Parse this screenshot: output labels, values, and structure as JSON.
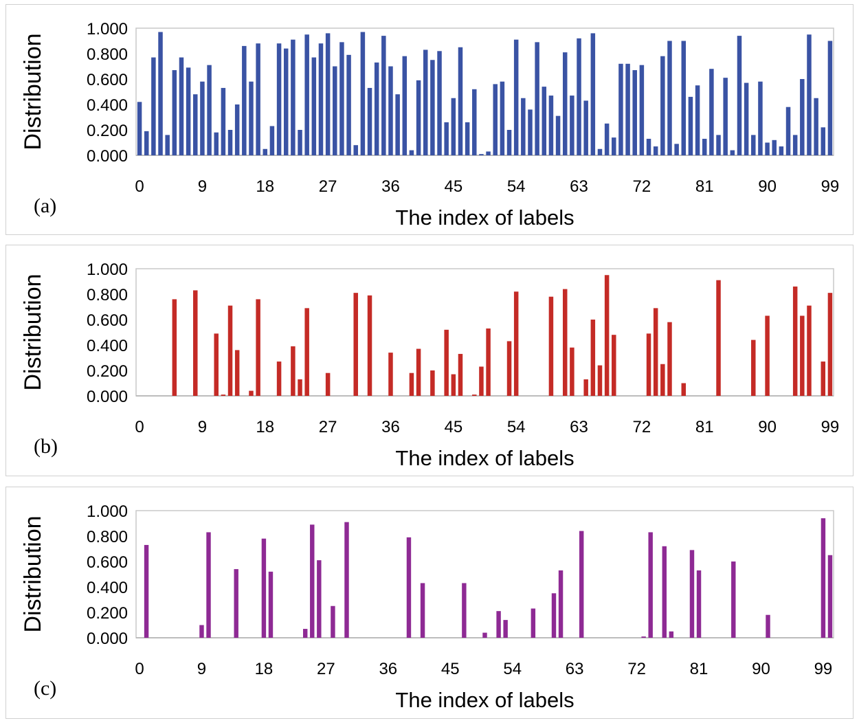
{
  "chart_data": [
    {
      "type": "bar",
      "panel_label": "(a)",
      "color": "#3a53a4",
      "ylabel": "Distribution",
      "xlabel": "The index of labels",
      "ylim": [
        0,
        1
      ],
      "yticks": [
        "0.000",
        "0.200",
        "0.400",
        "0.600",
        "0.800",
        "1.000"
      ],
      "xticks": [
        "0",
        "9",
        "18",
        "27",
        "36",
        "45",
        "54",
        "63",
        "72",
        "81",
        "90",
        "99"
      ],
      "values": [
        0.42,
        0.19,
        0.77,
        0.97,
        0.16,
        0.67,
        0.77,
        0.69,
        0.48,
        0.58,
        0.71,
        0.18,
        0.53,
        0.2,
        0.4,
        0.86,
        0.58,
        0.88,
        0.05,
        0.23,
        0.88,
        0.84,
        0.91,
        0.2,
        0.95,
        0.77,
        0.88,
        0.96,
        0.7,
        0.89,
        0.79,
        0.08,
        0.97,
        0.53,
        0.73,
        0.94,
        0.7,
        0.48,
        0.78,
        0.04,
        0.59,
        0.83,
        0.75,
        0.82,
        0.26,
        0.45,
        0.85,
        0.26,
        0.52,
        0.01,
        0.03,
        0.56,
        0.58,
        0.2,
        0.91,
        0.45,
        0.36,
        0.89,
        0.54,
        0.47,
        0.31,
        0.81,
        0.47,
        0.92,
        0.43,
        0.96,
        0.05,
        0.25,
        0.14,
        0.72,
        0.72,
        0.67,
        0.71,
        0.13,
        0.07,
        0.78,
        0.9,
        0.09,
        0.9,
        0.46,
        0.55,
        0.13,
        0.68,
        0.16,
        0.61,
        0.04,
        0.94,
        0.57,
        0.16,
        0.58,
        0.1,
        0.12,
        0.07,
        0.38,
        0.16,
        0.6,
        0.95,
        0.45,
        0.22,
        0.9
      ]
    },
    {
      "type": "bar",
      "panel_label": "(b)",
      "color": "#c42b26",
      "ylabel": "Distribution",
      "xlabel": "The index of labels",
      "ylim": [
        0,
        1
      ],
      "yticks": [
        "0.000",
        "0.200",
        "0.400",
        "0.600",
        "0.800",
        "1.000"
      ],
      "xticks": [
        "0",
        "9",
        "18",
        "27",
        "36",
        "45",
        "54",
        "63",
        "72",
        "81",
        "90",
        "99"
      ],
      "values": [
        0,
        0,
        0,
        0,
        0,
        0.76,
        0,
        0,
        0.83,
        0,
        0,
        0.49,
        0.01,
        0.71,
        0.36,
        0,
        0.04,
        0.76,
        0,
        0,
        0.27,
        0,
        0.39,
        0.13,
        0.69,
        0,
        0,
        0.18,
        0,
        0,
        0,
        0.81,
        0,
        0.79,
        0,
        0,
        0.34,
        0,
        0,
        0.18,
        0.37,
        0,
        0.2,
        0,
        0.52,
        0.17,
        0.33,
        0,
        0.01,
        0.23,
        0.53,
        0,
        0,
        0.43,
        0.82,
        0,
        0,
        0,
        0,
        0.78,
        0,
        0.84,
        0.38,
        0,
        0.13,
        0.6,
        0.24,
        0.95,
        0.48,
        0,
        0,
        0,
        0,
        0.49,
        0.69,
        0.25,
        0.58,
        0,
        0.1,
        0,
        0,
        0,
        0,
        0.91,
        0,
        0,
        0,
        0,
        0.44,
        0,
        0.63,
        0,
        0,
        0,
        0.86,
        0.63,
        0.71,
        0,
        0.27,
        0.81
      ]
    },
    {
      "type": "bar",
      "panel_label": "(c)",
      "color": "#8e2a94",
      "ylabel": "Distribution",
      "xlabel": "The index of labels",
      "ylim": [
        0,
        1
      ],
      "yticks": [
        "0.000",
        "0.200",
        "0.400",
        "0.600",
        "0.800",
        "1.000"
      ],
      "xticks": [
        "0",
        "9",
        "18",
        "27",
        "36",
        "45",
        "54",
        "63",
        "72",
        "81",
        "90",
        "99"
      ],
      "values": [
        0,
        0.73,
        0,
        0,
        0,
        0,
        0,
        0,
        0,
        0.1,
        0.83,
        0,
        0,
        0,
        0.54,
        0,
        0,
        0,
        0.78,
        0.52,
        0,
        0,
        0,
        0,
        0.07,
        0.89,
        0.61,
        0,
        0.25,
        0,
        0.91,
        0,
        0,
        0,
        0,
        0,
        0,
        0,
        0,
        0.79,
        0,
        0.43,
        0,
        0,
        0,
        0,
        0,
        0.43,
        0,
        0,
        0.04,
        0,
        0.21,
        0.14,
        0,
        0,
        0,
        0.23,
        0,
        0,
        0.35,
        0.53,
        0,
        0,
        0.84,
        0,
        0,
        0,
        0,
        0,
        0,
        0,
        0,
        0.01,
        0.83,
        0,
        0.72,
        0.05,
        0,
        0,
        0.69,
        0.53,
        0,
        0,
        0,
        0,
        0.6,
        0,
        0,
        0,
        0,
        0.18,
        0,
        0,
        0,
        0,
        0,
        0,
        0,
        0.94,
        0.65
      ]
    }
  ]
}
